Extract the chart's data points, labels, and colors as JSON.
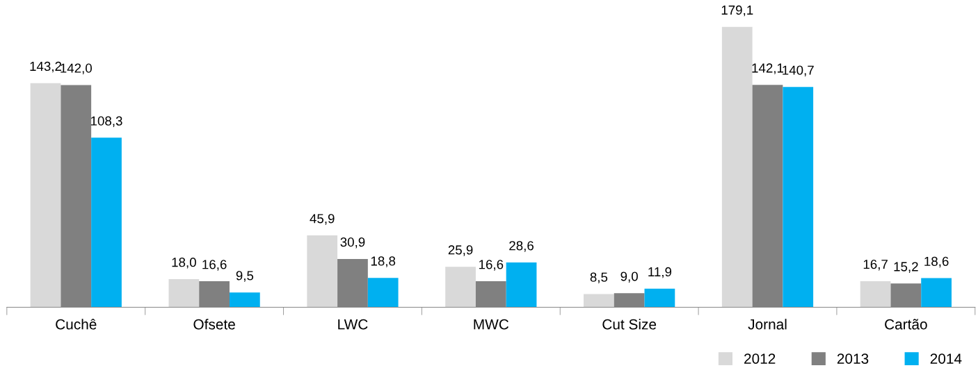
{
  "chart_data": {
    "type": "bar",
    "categories": [
      "Cuchê",
      "Ofsete",
      "LWC",
      "MWC",
      "Cut Size",
      "Jornal",
      "Cartão"
    ],
    "series": [
      {
        "name": "2012",
        "color": "#d9d9d9",
        "values": [
          143.2,
          18.0,
          45.9,
          25.9,
          8.5,
          179.1,
          16.7
        ],
        "value_labels": [
          "143,2",
          "18,0",
          "45,9",
          "25,9",
          "8,5",
          "179,1",
          "16,7"
        ]
      },
      {
        "name": "2013",
        "color": "#808080",
        "values": [
          142.0,
          16.6,
          30.9,
          16.6,
          9.0,
          142.1,
          15.2
        ],
        "value_labels": [
          "142,0",
          "16,6",
          "30,9",
          "16,6",
          "9,0",
          "142,1",
          "15,2"
        ]
      },
      {
        "name": "2014",
        "color": "#00b0f0",
        "values": [
          108.3,
          9.5,
          18.8,
          28.6,
          11.9,
          140.7,
          18.6
        ],
        "value_labels": [
          "108,3",
          "9,5",
          "18,8",
          "28,6",
          "11,9",
          "140,7",
          "18,6"
        ]
      }
    ],
    "legend": "bottom right",
    "grid": false
  }
}
